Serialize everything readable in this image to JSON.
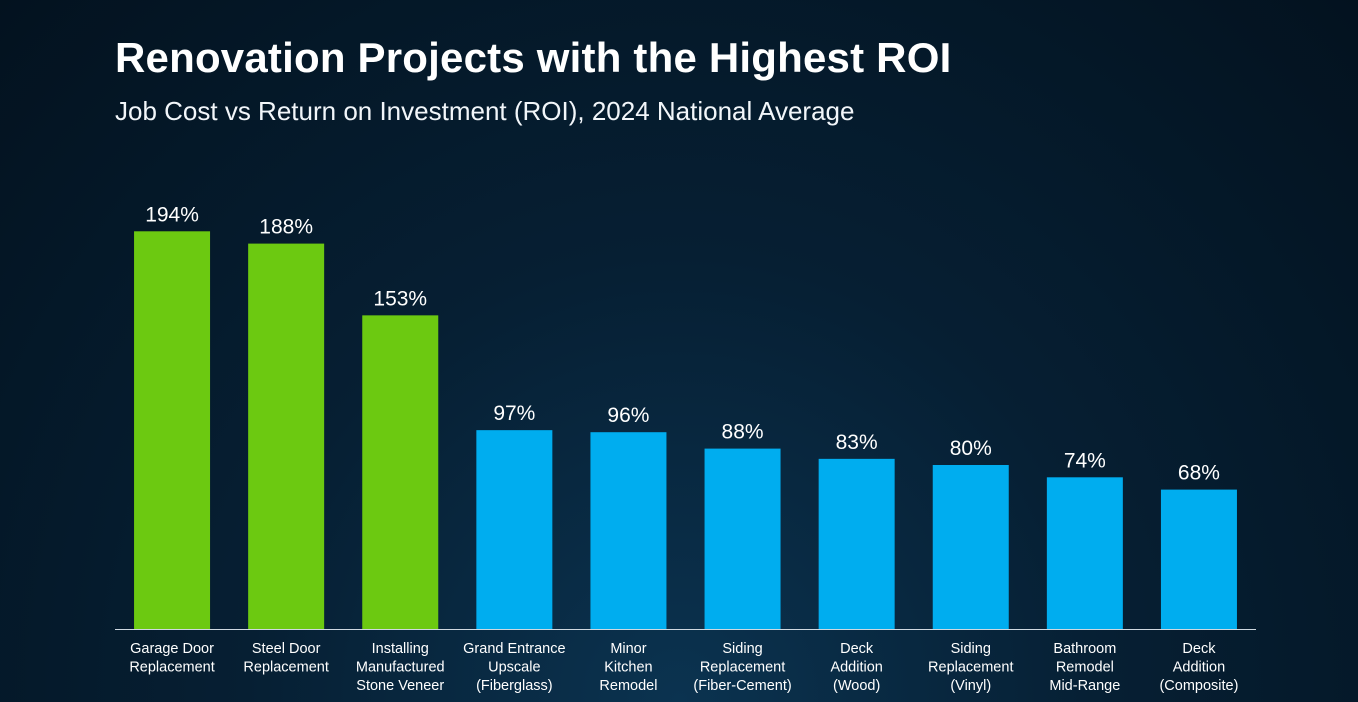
{
  "header": {
    "title": "Renovation Projects with the Highest ROI",
    "subtitle": "Job Cost vs Return on Investment (ROI), 2024 National Average"
  },
  "colors": {
    "highlight": "#6cc911",
    "standard": "#00adef",
    "axis": "#cfd8e0",
    "text": "#ffffff"
  },
  "chart_data": {
    "type": "bar",
    "title": "Renovation Projects with the Highest ROI",
    "subtitle": "Job Cost vs Return on Investment (ROI), 2024 National Average",
    "xlabel": "",
    "ylabel": "",
    "ylim": [
      0,
      200
    ],
    "grid": false,
    "legend": "none",
    "categories": [
      [
        "Garage Door",
        "Replacement"
      ],
      [
        "Steel Door",
        "Replacement"
      ],
      [
        "Installing",
        "Manufactured",
        "Stone Veneer"
      ],
      [
        "Grand Entrance",
        "Upscale",
        "(Fiberglass)"
      ],
      [
        "Minor",
        "Kitchen",
        "Remodel"
      ],
      [
        "Siding",
        "Replacement",
        "(Fiber-Cement)"
      ],
      [
        "Deck",
        "Addition",
        "(Wood)"
      ],
      [
        "Siding",
        "Replacement",
        "(Vinyl)"
      ],
      [
        "Bathroom",
        "Remodel",
        "Mid-Range"
      ],
      [
        "Deck",
        "Addition",
        "(Composite)"
      ]
    ],
    "values": [
      194,
      188,
      153,
      97,
      96,
      88,
      83,
      80,
      74,
      68
    ],
    "value_labels": [
      "194%",
      "188%",
      "153%",
      "97%",
      "96%",
      "88%",
      "83%",
      "80%",
      "74%",
      "68%"
    ],
    "highlighted": [
      true,
      true,
      true,
      false,
      false,
      false,
      false,
      false,
      false,
      false
    ]
  }
}
